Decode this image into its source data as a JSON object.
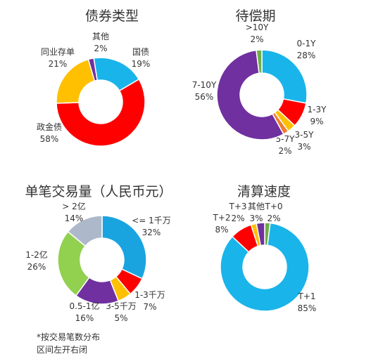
{
  "note_lines": [
    "*按交易笔数分布",
    "区间左开右闭"
  ],
  "chart_data": [
    {
      "type": "pie",
      "donut": true,
      "title": "债券类型",
      "slices": [
        {
          "label": "国债",
          "value": 19,
          "pct": "19%",
          "color": "#19b4ea"
        },
        {
          "label": "政金债",
          "value": 58,
          "pct": "58%",
          "color": "#fe0000"
        },
        {
          "label": "同业存单",
          "value": 21,
          "pct": "21%",
          "color": "#fec000"
        },
        {
          "label": "其他",
          "value": 2,
          "pct": "2%",
          "color": "#7030a0"
        }
      ]
    },
    {
      "type": "pie",
      "donut": true,
      "title": "待偿期",
      "slices": [
        {
          "label": "0-1Y",
          "value": 28,
          "pct": "28%",
          "color": "#19b4ea"
        },
        {
          "label": "1-3Y",
          "value": 9,
          "pct": "9%",
          "color": "#fe0000"
        },
        {
          "label": "3-5Y",
          "value": 3,
          "pct": "3%",
          "color": "#fec000"
        },
        {
          "label": "5-7Y",
          "value": 2,
          "pct": "2%",
          "color": "#ed7d31"
        },
        {
          "label": "7-10Y",
          "value": 56,
          "pct": "56%",
          "color": "#7030a0"
        },
        {
          "label": ">10Y",
          "value": 2,
          "pct": "2%",
          "color": "#70ad47"
        }
      ]
    },
    {
      "type": "pie",
      "donut": true,
      "title": "单笔交易量（人民币元）",
      "slices": [
        {
          "label": "<= 1千万",
          "value": 32,
          "pct": "32%",
          "color": "#19a4e0"
        },
        {
          "label": "1-3千万",
          "value": 7,
          "pct": "7%",
          "color": "#fe0000"
        },
        {
          "label": "3-5千万",
          "value": 5,
          "pct": "5%",
          "color": "#fec000"
        },
        {
          "label": "0.5-1亿",
          "value": 16,
          "pct": "16%",
          "color": "#7030a0"
        },
        {
          "label": "1-2亿",
          "value": 26,
          "pct": "26%",
          "color": "#92d050"
        },
        {
          "label": "> 2亿",
          "value": 14,
          "pct": "14%",
          "color": "#adb9ca"
        }
      ]
    },
    {
      "type": "pie",
      "donut": true,
      "title": "清算速度",
      "slices": [
        {
          "label": "T+0",
          "value": 2,
          "pct": "2%",
          "color": "#70ad47"
        },
        {
          "label": "T+1",
          "value": 85,
          "pct": "85%",
          "color": "#19b4ea"
        },
        {
          "label": "T+2",
          "value": 8,
          "pct": "8%",
          "color": "#fe0000"
        },
        {
          "label": "T+3",
          "value": 2,
          "pct": "2%",
          "color": "#fec000"
        },
        {
          "label": "其他",
          "value": 3,
          "pct": "3%",
          "color": "#7030a0"
        }
      ]
    }
  ]
}
